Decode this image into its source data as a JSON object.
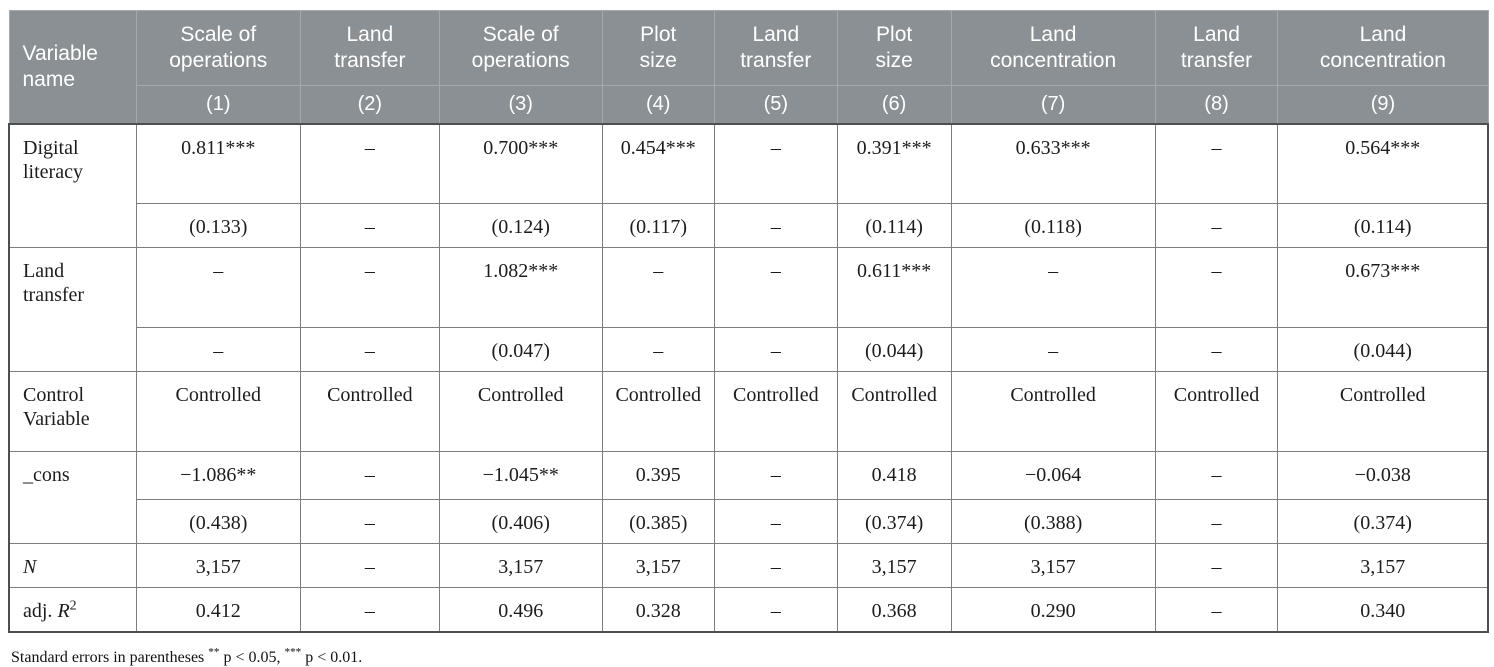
{
  "colors": {
    "header_bg": "#8b9094",
    "header_text": "#ffffff",
    "header_border": "#a4a9ac",
    "body_border": "#7d7d7d",
    "body_text": "#1c1c1c"
  },
  "table": {
    "corner_label": "Variable\nname",
    "columns": [
      {
        "label": "Scale of\noperations",
        "num": "(1)"
      },
      {
        "label": "Land\ntransfer",
        "num": "(2)"
      },
      {
        "label": "Scale of\noperations",
        "num": "(3)"
      },
      {
        "label": "Plot\nsize",
        "num": "(4)"
      },
      {
        "label": "Land\ntransfer",
        "num": "(5)"
      },
      {
        "label": "Plot\nsize",
        "num": "(6)"
      },
      {
        "label": "Land\nconcentration",
        "num": "(7)"
      },
      {
        "label": "Land\ntransfer",
        "num": "(8)"
      },
      {
        "label": "Land\nconcentration",
        "num": "(9)"
      }
    ],
    "rows": [
      {
        "label": [
          {
            "t": "Digital\nliteracy"
          }
        ],
        "rowspan": 2,
        "size": "tall",
        "cells": [
          "0.811***",
          "–",
          "0.700***",
          "0.454***",
          "–",
          "0.391***",
          "0.633***",
          "–",
          "0.564***"
        ]
      },
      {
        "cells": [
          "(0.133)",
          "–",
          "(0.124)",
          "(0.117)",
          "–",
          "(0.114)",
          "(0.118)",
          "–",
          "(0.114)"
        ]
      },
      {
        "label": [
          {
            "t": "Land\ntransfer"
          }
        ],
        "rowspan": 2,
        "size": "tall",
        "cells": [
          "–",
          "–",
          "1.082***",
          "–",
          "–",
          "0.611***",
          "–",
          "–",
          "0.673***"
        ]
      },
      {
        "cells": [
          "–",
          "–",
          "(0.047)",
          "–",
          "–",
          "(0.044)",
          "–",
          "–",
          "(0.044)"
        ]
      },
      {
        "label": [
          {
            "t": "Control\nVariable"
          }
        ],
        "rowspan": 1,
        "size": "tall",
        "cells": [
          "Controlled",
          "Controlled",
          "Controlled",
          "Controlled",
          "Controlled",
          "Controlled",
          "Controlled",
          "Controlled",
          "Controlled"
        ]
      },
      {
        "label": [
          {
            "t": "_cons"
          }
        ],
        "rowspan": 2,
        "size": "med",
        "cells": [
          "−1.086**",
          "–",
          "−1.045**",
          "0.395",
          "–",
          "0.418",
          "−0.064",
          "–",
          "−0.038"
        ]
      },
      {
        "cells": [
          "(0.438)",
          "–",
          "(0.406)",
          "(0.385)",
          "–",
          "(0.374)",
          "(0.388)",
          "–",
          "(0.374)"
        ]
      },
      {
        "label": [
          {
            "t": "N",
            "i": true
          }
        ],
        "rowspan": 1,
        "cells": [
          "3,157",
          "–",
          "3,157",
          "3,157",
          "–",
          "3,157",
          "3,157",
          "–",
          "3,157"
        ]
      },
      {
        "label": [
          {
            "t": "adj. "
          },
          {
            "t": "R",
            "i": true
          },
          {
            "t": "2",
            "sup": true
          }
        ],
        "rowspan": 1,
        "cells": [
          "0.412",
          "–",
          "0.496",
          "0.328",
          "–",
          "0.368",
          "0.290",
          "–",
          "0.340"
        ]
      }
    ]
  },
  "footnote": [
    {
      "t": "Standard errors in parentheses "
    },
    {
      "t": "**",
      "sup": true
    },
    {
      "t": " p < 0.05, "
    },
    {
      "t": "***",
      "sup": true
    },
    {
      "t": " p < 0.01."
    }
  ]
}
